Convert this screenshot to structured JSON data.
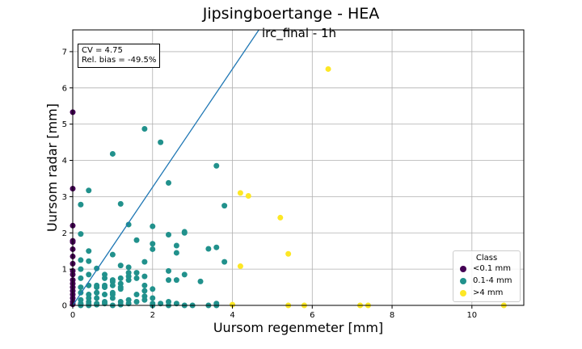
{
  "chart_data": {
    "type": "scatter",
    "suptitle": "Jipsingboertange - HEA",
    "title": "irc_final - 1h",
    "xlabel": "Uursom regenmeter [mm]",
    "ylabel": "Uursom radar [mm]",
    "xlim": [
      0,
      11.3
    ],
    "ylim": [
      0,
      7.6
    ],
    "xticks": [
      "0",
      "2",
      "4",
      "6",
      "8",
      "10"
    ],
    "yticks": [
      "0",
      "1",
      "2",
      "3",
      "4",
      "5",
      "6",
      "7"
    ],
    "grid": true,
    "annotation": {
      "line1": "CV = 4.75",
      "line2": "Rel. bias = -49.5%",
      "placement": "top-left"
    },
    "legend": {
      "title": "Class",
      "placement": "bottom-right",
      "entries": [
        {
          "label": "<0.1 mm",
          "color": "#440154"
        },
        {
          "label": "0.1-4 mm",
          "color": "#21918c"
        },
        {
          "label": ">4 mm",
          "color": "#fde725"
        }
      ]
    },
    "regression_line": {
      "slope": 1.63,
      "intercept": 0,
      "color": "#1f77b4"
    },
    "series": [
      {
        "name": "<0.1 mm",
        "color": "#440154",
        "x": [
          0,
          0,
          0,
          0,
          0,
          0,
          0,
          0,
          0,
          0,
          0,
          0,
          0,
          0,
          0,
          0,
          0,
          0
        ],
        "y": [
          5.33,
          3.22,
          2.2,
          1.78,
          1.75,
          1.55,
          1.35,
          1.15,
          0.95,
          0.85,
          0.7,
          0.6,
          0.5,
          0.4,
          0.3,
          0.2,
          0.1,
          0.03
        ]
      },
      {
        "name": "0.1-4 mm",
        "color": "#21918c",
        "x": [
          0.2,
          0.2,
          0.4,
          0.2,
          0.4,
          0.2,
          0.4,
          0.2,
          0.4,
          0.6,
          0.2,
          0.4,
          0.6,
          0.8,
          0.2,
          0.4,
          0.6,
          0.8,
          0.2,
          0.4,
          0.6,
          0.8,
          1.0,
          0.2,
          0.4,
          0.6,
          0.8,
          1.0,
          1.2,
          0.2,
          0.4,
          0.6,
          0.8,
          1.0,
          1.2,
          1.4,
          0.2,
          0.4,
          0.6,
          0.8,
          1.0,
          1.2,
          1.4,
          1.6,
          0.6,
          0.8,
          1.0,
          1.2,
          1.4,
          1.6,
          1.8,
          2.0,
          1.0,
          1.2,
          1.4,
          1.6,
          1.8,
          2.0,
          2.2,
          2.4,
          2.6,
          2.8,
          3.0,
          1.0,
          1.2,
          1.4,
          1.6,
          1.8,
          2.0,
          2.4,
          1.0,
          1.8,
          2.2,
          1.2,
          1.4,
          1.6,
          1.8,
          2.0,
          2.0,
          2.4,
          2.6,
          2.6,
          2.8,
          2.8,
          3.2,
          3.4,
          3.6,
          3.6,
          3.8,
          3.8,
          3.6,
          2.4,
          1.2,
          1.4,
          1.0,
          2.0,
          2.4,
          2.8,
          3.4,
          3.6,
          1.8,
          1.8,
          2.0,
          2.4,
          2.6
        ],
        "y": [
          2.78,
          1.97,
          3.17,
          1.25,
          1.22,
          1.0,
          1.5,
          0.75,
          0.85,
          1.02,
          0.5,
          0.55,
          0.55,
          0.85,
          0.35,
          0.3,
          0.35,
          0.75,
          0.15,
          0.2,
          0.5,
          0.55,
          0.7,
          0.05,
          0.1,
          0.2,
          0.3,
          0.65,
          0.45,
          0.02,
          0.03,
          0.05,
          0.1,
          0.55,
          0.75,
          1.05,
          0.0,
          0.0,
          0.02,
          0.05,
          0.35,
          0.6,
          0.8,
          0.9,
          0.35,
          0.5,
          0.2,
          0.5,
          0.7,
          0.75,
          0.4,
          0.45,
          0.0,
          0.02,
          0.05,
          0.1,
          0.15,
          0.0,
          0.05,
          0.0,
          0.05,
          0.0,
          0.0,
          4.18,
          2.8,
          2.23,
          1.8,
          4.87,
          2.18,
          3.38,
          0.3,
          1.2,
          4.5,
          1.1,
          0.9,
          0.3,
          0.55,
          1.55,
          1.7,
          1.95,
          1.65,
          1.45,
          2.0,
          2.03,
          0.66,
          1.56,
          1.6,
          3.85,
          1.2,
          2.75,
          0.05,
          0.7,
          0.1,
          0.15,
          1.4,
          0.2,
          0.95,
          0.85,
          0.0,
          0.0,
          0.8,
          0.25,
          0.05,
          0.1,
          0.7
        ]
      },
      {
        "name": ">4 mm",
        "color": "#fde725",
        "x": [
          6.4,
          4.2,
          4.4,
          5.2,
          5.4,
          4.2,
          4.0,
          5.4,
          5.8,
          7.2,
          7.4,
          10.8
        ],
        "y": [
          6.52,
          3.1,
          3.02,
          2.42,
          1.42,
          1.08,
          0.02,
          0.0,
          0.0,
          0.0,
          0.0,
          0.0
        ]
      }
    ]
  }
}
